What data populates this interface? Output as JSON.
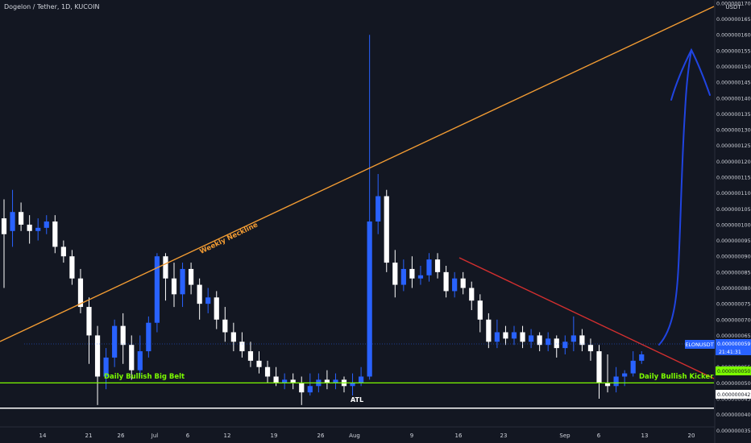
{
  "header": {
    "title": "Dogelon / Tether, 1D, KUCOIN"
  },
  "colors": {
    "background": "#131722",
    "bull": "#2962ff",
    "bear": "#ffffff",
    "neckline": "#f39c33",
    "downtrend": "#d32f2f",
    "support": "#7cfc00",
    "atl": "#ffffff",
    "arrow": "#2044e0",
    "text": "#d1d4dc"
  },
  "annotations": {
    "weekly_neckline": "Weekly Neckline",
    "big_belt": "Daily Bullish Big Belt",
    "kicker": "Daily Bullish Kicker",
    "atl": "ATL"
  },
  "price_tags": {
    "symbol": "ELONUSDT",
    "last_price": "0.000000059",
    "countdown": "21:41:31",
    "support_price": "0.000000050",
    "atl_price": "0.000000042"
  },
  "chart_data": {
    "type": "candlestick",
    "title": "Dogelon / Tether, 1D, KUCOIN",
    "y_unit": "USDT",
    "ylim": [
      3.1e-08,
      1.71e-07
    ],
    "y_ticks": [
      "0.000000170",
      "0.000000165",
      "0.000000160",
      "0.000000155",
      "0.000000150",
      "0.000000145",
      "0.000000140",
      "0.000000135",
      "0.000000130",
      "0.000000125",
      "0.000000120",
      "0.000000115",
      "0.000000110",
      "0.000000105",
      "0.000000100",
      "0.000000095",
      "0.000000090",
      "0.000000085",
      "0.000000080",
      "0.000000075",
      "0.000000070",
      "0.000000065",
      "0.000000060",
      "0.000000055",
      "0.000000050",
      "0.000000045",
      "0.000000040",
      "0.000000035"
    ],
    "x_ticks": [
      "14",
      "21",
      "26",
      "Jul",
      "6",
      "12",
      "19",
      "26",
      "Aug",
      "9",
      "16",
      "23",
      "Sep",
      "6",
      "13",
      "20"
    ],
    "support_level": 5e-08,
    "atl_level": 4.2e-08,
    "candles": [
      [
        1.02e-07,
        9.7e-08,
        1.08e-07,
        8e-08
      ],
      [
        9.8e-08,
        1.04e-07,
        1.11e-07,
        9.3e-08
      ],
      [
        1.04e-07,
        1e-07,
        1.07e-07,
        9.8e-08
      ],
      [
        1e-07,
        9.8e-08,
        1.03e-07,
        9.4e-08
      ],
      [
        9.8e-08,
        9.9e-08,
        1.02e-07,
        9.5e-08
      ],
      [
        9.9e-08,
        1.01e-07,
        1.03e-07,
        9.7e-08
      ],
      [
        1.01e-07,
        9.3e-08,
        1.03e-07,
        9.1e-08
      ],
      [
        9.3e-08,
        9e-08,
        9.5e-08,
        8.8e-08
      ],
      [
        9e-08,
        8.3e-08,
        9.2e-08,
        8.1e-08
      ],
      [
        8.3e-08,
        7.4e-08,
        8.6e-08,
        7.2e-08
      ],
      [
        7.4e-08,
        6.5e-08,
        7.7e-08,
        5.6e-08
      ],
      [
        6.5e-08,
        5.2e-08,
        6.8e-08,
        4.3e-08
      ],
      [
        5.2e-08,
        5.8e-08,
        6.1e-08,
        4.8e-08
      ],
      [
        5.8e-08,
        6.8e-08,
        7e-08,
        5.5e-08
      ],
      [
        6.8e-08,
        6.2e-08,
        7.2e-08,
        5.6e-08
      ],
      [
        6.2e-08,
        5.4e-08,
        6.5e-08,
        5.1e-08
      ],
      [
        5.4e-08,
        6e-08,
        6.5e-08,
        5.2e-08
      ],
      [
        6e-08,
        6.9e-08,
        7.1e-08,
        5.8e-08
      ],
      [
        6.9e-08,
        9e-08,
        9.1e-08,
        6.6e-08
      ],
      [
        9e-08,
        8.3e-08,
        9.1e-08,
        7.6e-08
      ],
      [
        8.3e-08,
        7.8e-08,
        8.8e-08,
        7.4e-08
      ],
      [
        7.8e-08,
        8.6e-08,
        8.8e-08,
        7.4e-08
      ],
      [
        8.6e-08,
        8.1e-08,
        8.8e-08,
        7.8e-08
      ],
      [
        8.1e-08,
        7.5e-08,
        8.3e-08,
        7e-08
      ],
      [
        7.5e-08,
        7.7e-08,
        8e-08,
        7.2e-08
      ],
      [
        7.7e-08,
        7e-08,
        7.9e-08,
        6.7e-08
      ],
      [
        7e-08,
        6.6e-08,
        7.4e-08,
        6.3e-08
      ],
      [
        6.6e-08,
        6.3e-08,
        6.9e-08,
        6e-08
      ],
      [
        6.3e-08,
        6e-08,
        6.6e-08,
        5.8e-08
      ],
      [
        6e-08,
        5.7e-08,
        6.3e-08,
        5.5e-08
      ],
      [
        5.7e-08,
        5.5e-08,
        6e-08,
        5.3e-08
      ],
      [
        5.5e-08,
        5.2e-08,
        5.7e-08,
        5e-08
      ],
      [
        5.2e-08,
        5e-08,
        5.5e-08,
        4.9e-08
      ],
      [
        5e-08,
        5.1e-08,
        5.3e-08,
        4.8e-08
      ],
      [
        5.1e-08,
        5e-08,
        5.3e-08,
        4.8e-08
      ],
      [
        5e-08,
        4.7e-08,
        5.2e-08,
        4.3e-08
      ],
      [
        4.7e-08,
        4.9e-08,
        5.3e-08,
        4.6e-08
      ],
      [
        4.9e-08,
        5.1e-08,
        5.3e-08,
        4.7e-08
      ],
      [
        5.1e-08,
        5e-08,
        5.4e-08,
        4.8e-08
      ],
      [
        5e-08,
        5.1e-08,
        5.3e-08,
        4.8e-08
      ],
      [
        5.1e-08,
        4.9e-08,
        5.2e-08,
        4.7e-08
      ],
      [
        4.9e-08,
        5e-08,
        5.3e-08,
        4.6e-08
      ],
      [
        5e-08,
        5.2e-08,
        5.5e-08,
        4.9e-08
      ],
      [
        5.2e-08,
        1.01e-07,
        1.6e-07,
        5.1e-08
      ],
      [
        1.01e-07,
        1.09e-07,
        1.16e-07,
        9.7e-08
      ],
      [
        1.09e-07,
        8.8e-08,
        1.11e-07,
        8.5e-08
      ],
      [
        8.8e-08,
        8.1e-08,
        9.2e-08,
        7.7e-08
      ],
      [
        8.1e-08,
        8.6e-08,
        8.9e-08,
        7.9e-08
      ],
      [
        8.6e-08,
        8.3e-08,
        9e-08,
        8e-08
      ],
      [
        8.3e-08,
        8.4e-08,
        8.7e-08,
        8.1e-08
      ],
      [
        8.4e-08,
        8.9e-08,
        9.1e-08,
        8.2e-08
      ],
      [
        8.9e-08,
        8.5e-08,
        9.1e-08,
        8.3e-08
      ],
      [
        8.5e-08,
        7.9e-08,
        8.7e-08,
        7.7e-08
      ],
      [
        7.9e-08,
        8.3e-08,
        8.5e-08,
        7.7e-08
      ],
      [
        8.3e-08,
        8e-08,
        8.5e-08,
        7.8e-08
      ],
      [
        8e-08,
        7.6e-08,
        8.2e-08,
        7.3e-08
      ],
      [
        7.6e-08,
        7e-08,
        7.8e-08,
        6.6e-08
      ],
      [
        7e-08,
        6.3e-08,
        7.2e-08,
        6.1e-08
      ],
      [
        6.3e-08,
        6.6e-08,
        7e-08,
        6.1e-08
      ],
      [
        6.6e-08,
        6.4e-08,
        6.8e-08,
        6.2e-08
      ],
      [
        6.4e-08,
        6.6e-08,
        6.8e-08,
        6.2e-08
      ],
      [
        6.6e-08,
        6.3e-08,
        6.8e-08,
        6.1e-08
      ],
      [
        6.3e-08,
        6.5e-08,
        6.7e-08,
        6.1e-08
      ],
      [
        6.5e-08,
        6.2e-08,
        6.6e-08,
        6e-08
      ],
      [
        6.2e-08,
        6.4e-08,
        6.6e-08,
        6e-08
      ],
      [
        6.4e-08,
        6.1e-08,
        6.5e-08,
        5.8e-08
      ],
      [
        6.1e-08,
        6.3e-08,
        6.5e-08,
        5.9e-08
      ],
      [
        6.3e-08,
        6.5e-08,
        7.1e-08,
        6e-08
      ],
      [
        6.5e-08,
        6.2e-08,
        6.7e-08,
        6e-08
      ],
      [
        6.2e-08,
        6e-08,
        6.4e-08,
        5.7e-08
      ],
      [
        6e-08,
        5e-08,
        6.2e-08,
        4.5e-08
      ],
      [
        5e-08,
        4.9e-08,
        5.9e-08,
        4.7e-08
      ],
      [
        4.9e-08,
        5.2e-08,
        5.5e-08,
        4.7e-08
      ],
      [
        5.2e-08,
        5.3e-08,
        5.4e-08,
        4.9e-08
      ],
      [
        5.3e-08,
        5.7e-08,
        6e-08,
        5.2e-08
      ],
      [
        5.7e-08,
        5.9e-08,
        6e-08,
        5.6e-08
      ]
    ]
  }
}
